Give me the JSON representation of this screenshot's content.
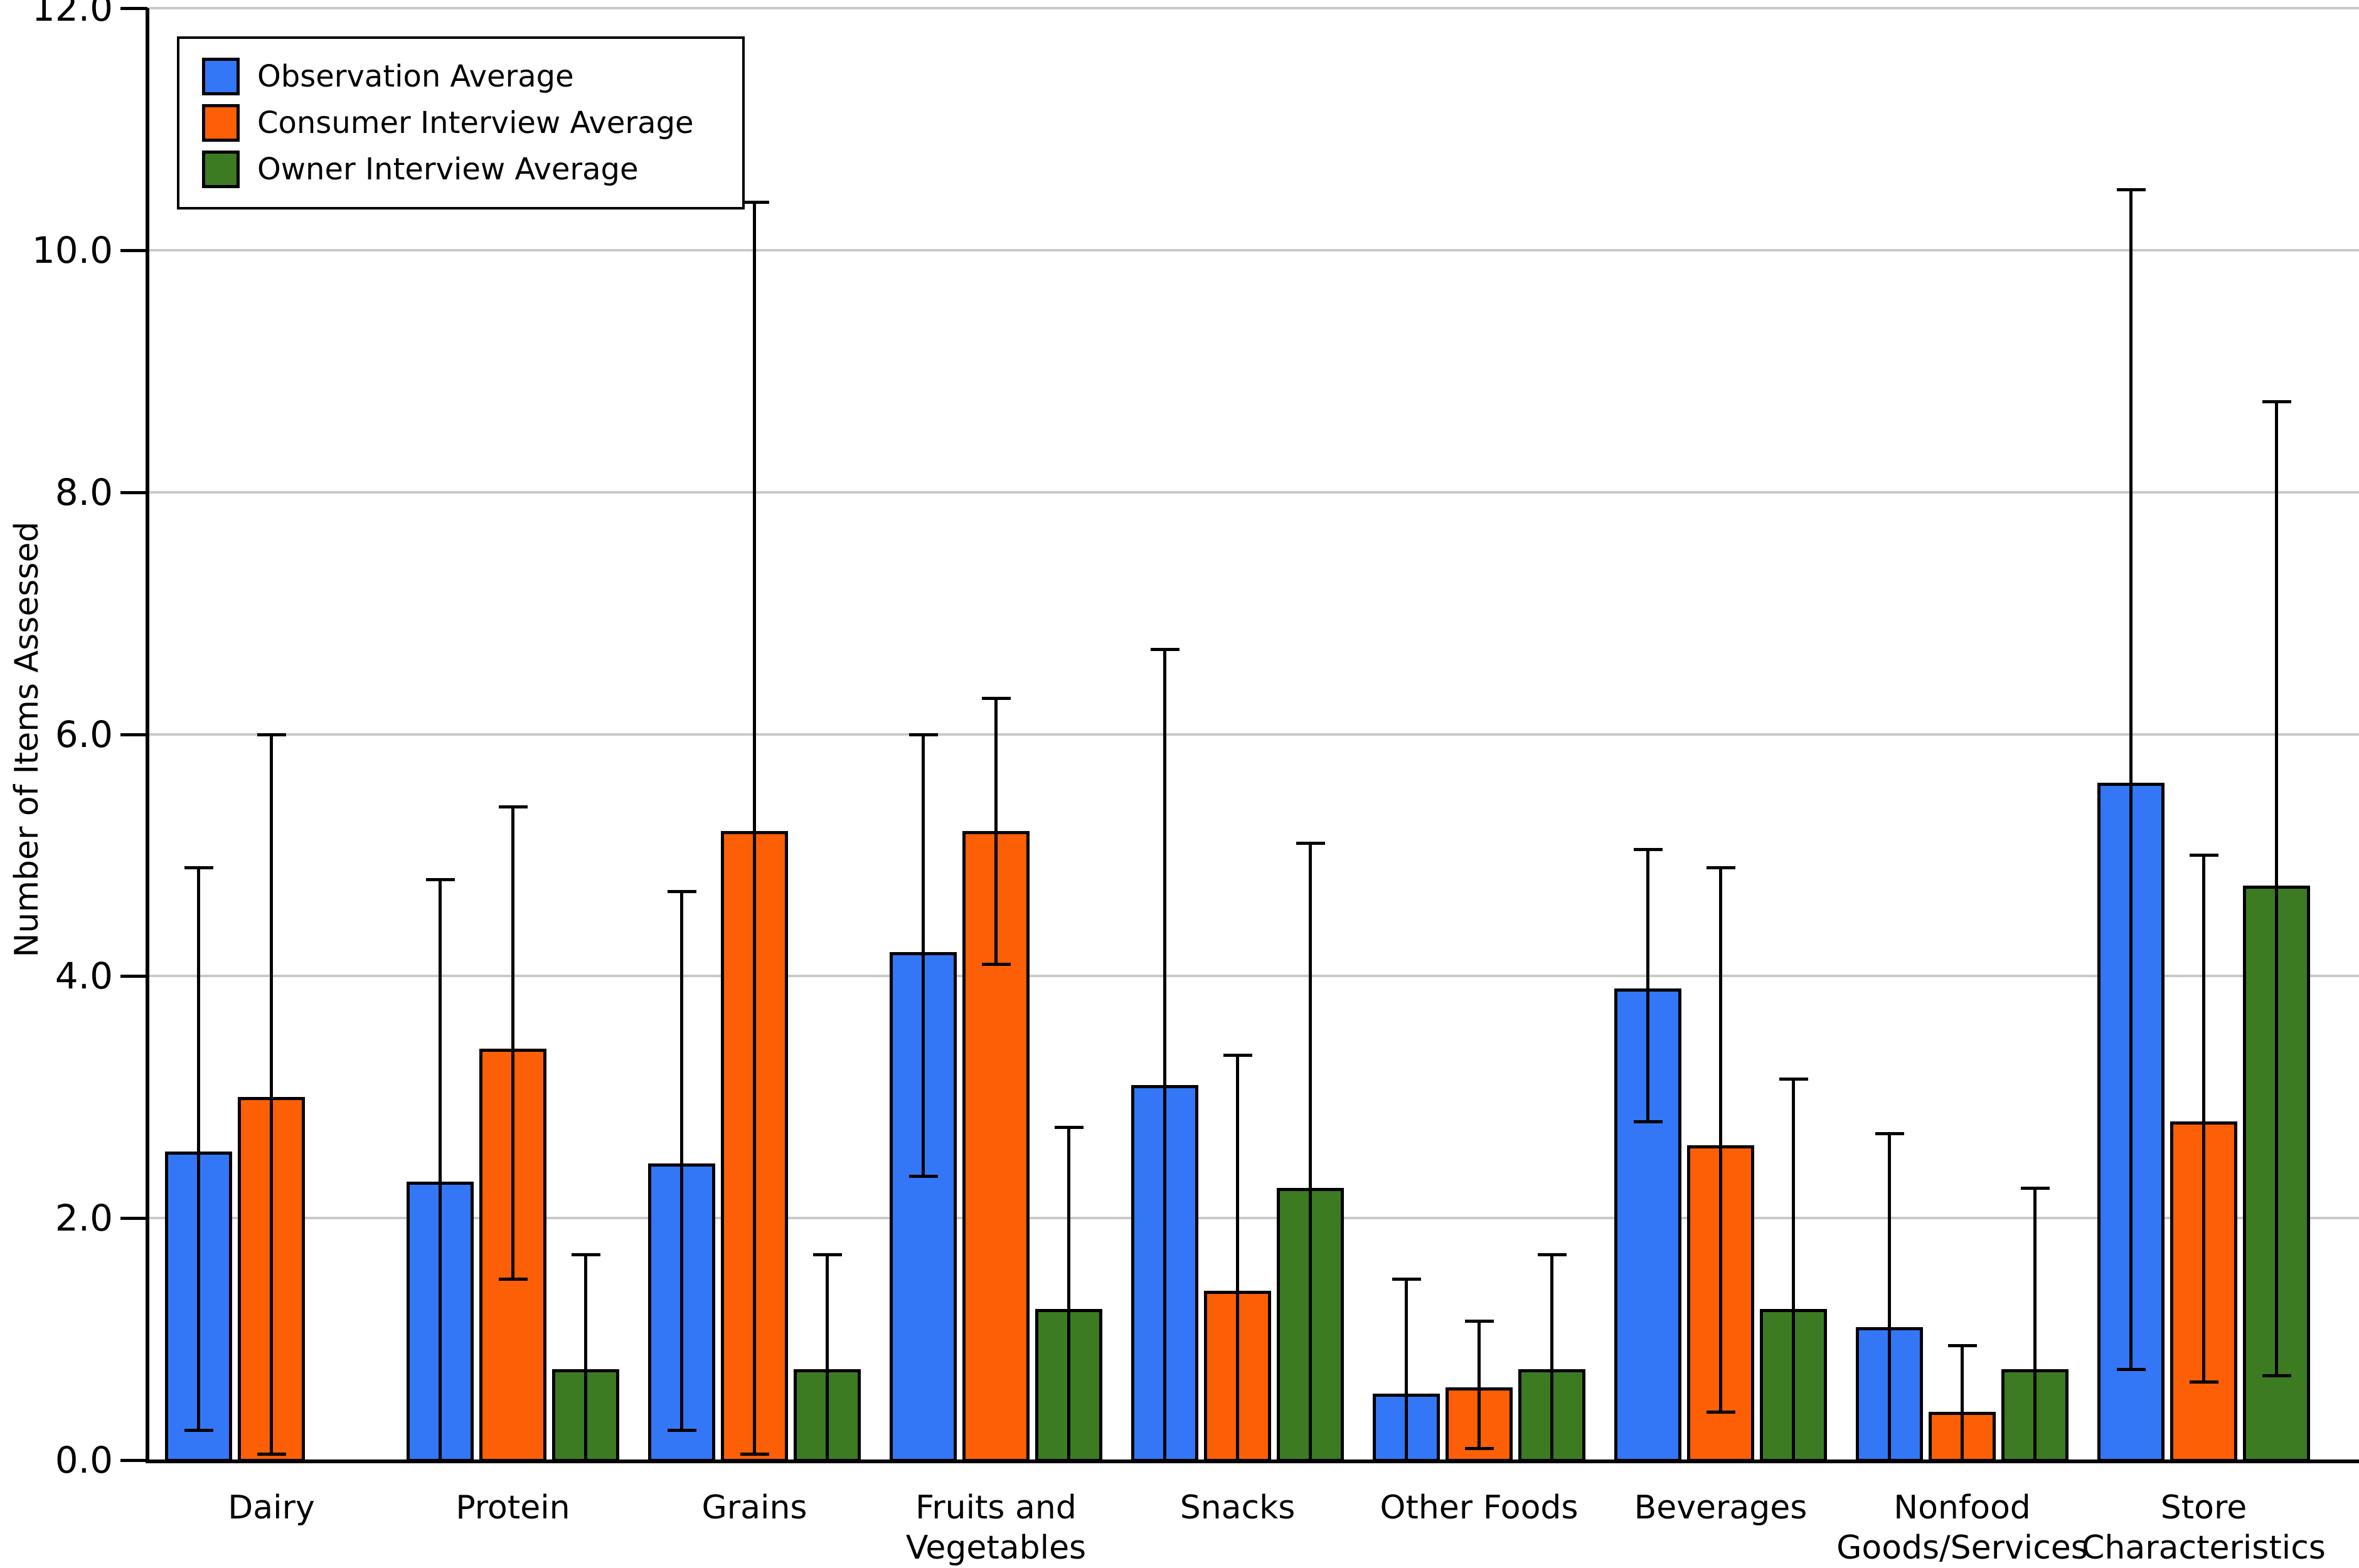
{
  "chart_data": {
    "type": "bar",
    "title": "",
    "xlabel": "",
    "ylabel": "Number of Items Assessed",
    "ylim": [
      0,
      12
    ],
    "y_tick_step": 2,
    "y_tick_format_decimals": 1,
    "grid": "horizontal",
    "legend_position": "upper-left",
    "categories": [
      "Dairy",
      "Protein",
      "Grains",
      "Fruits and\nVegetables",
      "Snacks",
      "Other Foods",
      "Beverages",
      "Nonfood\nGoods/Services",
      "Store\nCharacteristics"
    ],
    "series": [
      {
        "name": "Observation Average",
        "color": "#3377F7",
        "values": [
          2.55,
          2.3,
          2.45,
          4.2,
          3.1,
          0.55,
          3.9,
          1.1,
          5.6
        ],
        "err_low": [
          0.25,
          0,
          0.25,
          2.35,
          0,
          0,
          2.8,
          0,
          0.75
        ],
        "err_high": [
          4.9,
          4.8,
          4.7,
          6.0,
          6.7,
          1.5,
          5.05,
          2.7,
          10.5
        ]
      },
      {
        "name": "Consumer Interview Average",
        "color": "#FC5F05",
        "values": [
          3.0,
          3.4,
          5.2,
          5.2,
          1.4,
          0.6,
          2.6,
          0.4,
          2.8
        ],
        "err_low": [
          0.05,
          1.5,
          0.05,
          4.1,
          0,
          0.1,
          0.4,
          0,
          0.65
        ],
        "err_high": [
          6.0,
          5.4,
          10.4,
          6.3,
          3.35,
          1.15,
          4.9,
          0.95,
          5.0
        ]
      },
      {
        "name": "Owner Interview Average",
        "color": "#3D7B23",
        "values": [
          null,
          0.75,
          0.75,
          1.25,
          2.25,
          0.75,
          1.25,
          0.75,
          4.75
        ],
        "err_low": [
          null,
          0,
          0,
          0,
          0,
          0,
          0,
          0,
          0.7
        ],
        "err_high": [
          null,
          1.7,
          1.7,
          2.75,
          5.1,
          1.7,
          3.15,
          2.25,
          8.75
        ]
      }
    ],
    "y_axis_tick_labels": [
      "0.0",
      "2.0",
      "4.0",
      "6.0",
      "8.0",
      "10.0",
      "12.0"
    ]
  }
}
